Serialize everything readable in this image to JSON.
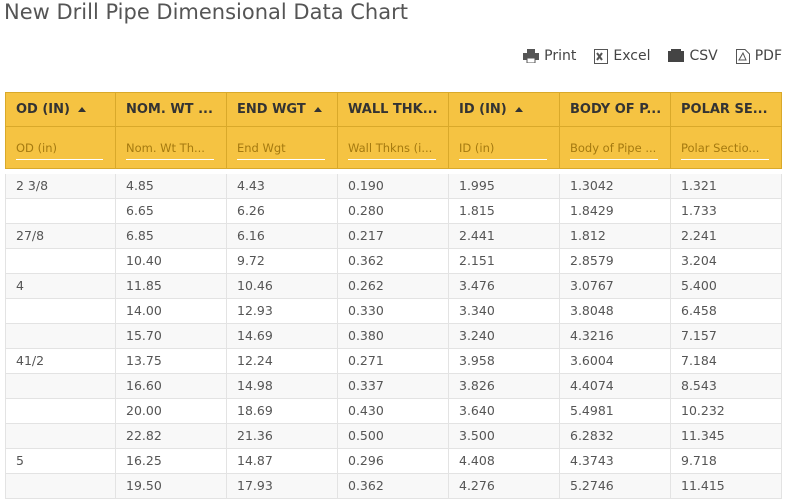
{
  "header": {
    "title": "New Drill Pipe Dimensional Data Chart"
  },
  "toolbar": [
    "Print",
    "Excel",
    "CSV",
    "PDF"
  ],
  "table": {
    "columns": [
      "OD (IN)",
      "NOM. WT ...",
      "END WGT",
      "WALL THK...",
      "ID (IN)",
      "BODY OF P...",
      "POLAR SE..."
    ],
    "sortable": [
      true,
      false,
      true,
      false,
      true,
      false,
      false
    ],
    "filters": [
      "OD (in)",
      "Nom. Wt Th...",
      "End Wgt",
      "Wall Thkns (i...",
      "ID (in)",
      "Body of Pipe ...",
      "Polar Sectio..."
    ],
    "rows": [
      [
        "2 3/8",
        "4.85",
        "4.43",
        "0.190",
        "1.995",
        "1.3042",
        "1.321"
      ],
      [
        null,
        "6.65",
        "6.26",
        "0.280",
        "1.815",
        "1.8429",
        "1.733"
      ],
      [
        "27/8",
        "6.85",
        "6.16",
        "0.217",
        "2.441",
        "1.812",
        "2.241"
      ],
      [
        null,
        "10.40",
        "9.72",
        "0.362",
        "2.151",
        "2.8579",
        "3.204"
      ],
      [
        "4",
        "11.85",
        "10.46",
        "0.262",
        "3.476",
        "3.0767",
        "5.400"
      ],
      [
        null,
        "14.00",
        "12.93",
        "0.330",
        "3.340",
        "3.8048",
        "6.458"
      ],
      [
        null,
        "15.70",
        "14.69",
        "0.380",
        "3.240",
        "4.3216",
        "7.157"
      ],
      [
        "41/2",
        "13.75",
        "12.24",
        "0.271",
        "3.958",
        "3.6004",
        "7.184"
      ],
      [
        null,
        "16.60",
        "14.98",
        "0.337",
        "3.826",
        "4.4074",
        "8.543"
      ],
      [
        null,
        "20.00",
        "18.69",
        "0.430",
        "3.640",
        "5.4981",
        "10.232"
      ],
      [
        null,
        "22.82",
        "21.36",
        "0.500",
        "3.500",
        "6.2832",
        "11.345"
      ],
      [
        "5",
        "16.25",
        "14.87",
        "0.296",
        "4.408",
        "4.3743",
        "9.718"
      ],
      [
        null,
        "19.50",
        "17.93",
        "0.362",
        "4.276",
        "5.2746",
        "11.415"
      ]
    ]
  }
}
